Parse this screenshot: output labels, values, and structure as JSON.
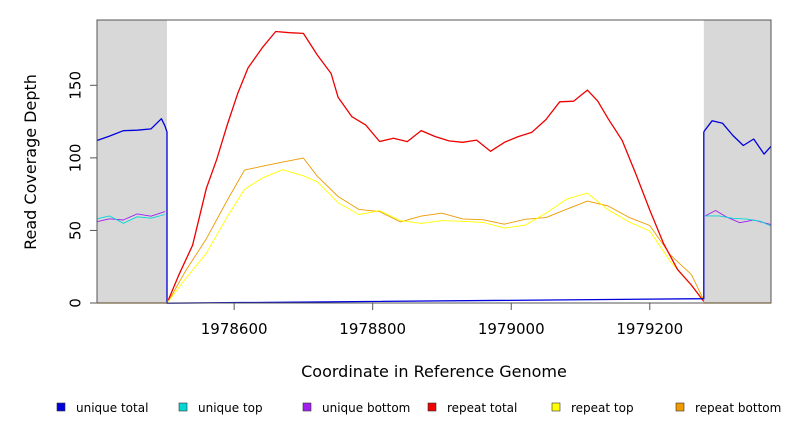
{
  "chart_data": {
    "type": "line",
    "title": "",
    "xlabel": "Coordinate in Reference Genome",
    "ylabel": "Read Coverage Depth",
    "xlim": [
      1978402,
      1979375
    ],
    "ylim": [
      0,
      195
    ],
    "x_ticks": [
      1978600,
      1978800,
      1979000,
      1979200
    ],
    "y_ticks": [
      0,
      50,
      100,
      150
    ],
    "shaded_regions": [
      {
        "from": 1978402,
        "to": 1978503,
        "color": "#d8d8d8"
      },
      {
        "from": 1979278,
        "to": 1979375,
        "color": "#d8d8d8"
      }
    ],
    "grid": false,
    "legend_position": "bottom",
    "series": [
      {
        "name": "unique total",
        "color": "#0000dd",
        "segments": [
          {
            "x": [
              1978402,
              1978420,
              1978440,
              1978460,
              1978480,
              1978495,
              1978500,
              1978503,
              1978503,
              1979278,
              1979278
            ],
            "y": [
              112,
              116,
              120,
              117,
              119,
              126,
              122,
              119,
              1,
              1,
              118
            ]
          },
          {
            "x": [
              1979278,
              1979290,
              1979305,
              1979320,
              1979335,
              1979350,
              1979365,
              1979375
            ],
            "y": [
              118,
              126,
              122,
              114,
              108,
              112,
              103,
              108
            ]
          }
        ]
      },
      {
        "name": "unique top",
        "color": "#00d8d8",
        "segments": [
          {
            "x": [
              1978402,
              1978420,
              1978440,
              1978460,
              1978480,
              1978500
            ],
            "y": [
              58,
              59,
              57,
              60,
              59,
              61
            ]
          },
          {
            "x": [
              1979280,
              1979300,
              1979320,
              1979340,
              1979360,
              1979375
            ],
            "y": [
              60,
              61,
              59,
              57,
              54,
              53
            ]
          }
        ]
      },
      {
        "name": "unique bottom",
        "color": "#a020f0",
        "segments": [
          {
            "x": [
              1978402,
              1978420,
              1978440,
              1978460,
              1978480,
              1978500
            ],
            "y": [
              56,
              58,
              57,
              59,
              60,
              63
            ]
          },
          {
            "x": [
              1979280,
              1979295,
              1979310,
              1979330,
              1979350,
              1979375
            ],
            "y": [
              60,
              64,
              60,
              56,
              55,
              54
            ]
          }
        ]
      },
      {
        "name": "repeat total",
        "color": "#ee0000",
        "segments": [
          {
            "x": [
              1978505,
              1978520,
              1978540,
              1978560,
              1978575,
              1978590,
              1978605,
              1978620,
              1978640,
              1978660,
              1978680,
              1978700,
              1978720,
              1978740,
              1978750,
              1978770,
              1978790,
              1978810,
              1978830,
              1978850,
              1978870,
              1978890,
              1978910,
              1978930,
              1978950,
              1978970,
              1978990,
              1979010,
              1979030,
              1979050,
              1979070,
              1979090,
              1979110,
              1979125,
              1979140,
              1979160,
              1979180,
              1979200,
              1979220,
              1979240,
              1979260,
              1979278
            ],
            "y": [
              2,
              20,
              42,
              78,
              100,
              125,
              145,
              162,
              178,
              187,
              186,
              184,
              170,
              160,
              140,
              127,
              124,
              112,
              115,
              110,
              117,
              115,
              112,
              113,
              112,
              103,
              110,
              114,
              120,
              127,
              138,
              138,
              145,
              138,
              126,
              110,
              90,
              65,
              42,
              23,
              10,
              1
            ]
          }
        ]
      },
      {
        "name": "repeat top",
        "color": "#ffff00",
        "segments": [
          {
            "x": [
              1978505,
              1978530,
              1978560,
              1978590,
              1978615,
              1978640,
              1978670,
              1978700,
              1978720,
              1978750,
              1978780,
              1978810,
              1978840,
              1978870,
              1978900,
              1978930,
              1978960,
              1978990,
              1979020,
              1979050,
              1979080,
              1979110,
              1979140,
              1979170,
              1979200,
              1979230,
              1979260,
              1979278
            ],
            "y": [
              1,
              18,
              35,
              60,
              78,
              86,
              90,
              88,
              82,
              70,
              63,
              62,
              56,
              55,
              58,
              57,
              53,
              52,
              55,
              62,
              71,
              74,
              66,
              57,
              48,
              28,
              12,
              2
            ]
          }
        ]
      },
      {
        "name": "repeat bottom",
        "color": "#ee9a00",
        "segments": [
          {
            "x": [
              1978505,
              1978530,
              1978560,
              1978590,
              1978615,
              1978640,
              1978670,
              1978700,
              1978720,
              1978750,
              1978780,
              1978810,
              1978840,
              1978870,
              1978900,
              1978930,
              1978960,
              1978990,
              1979020,
              1979050,
              1979080,
              1979110,
              1979140,
              1979170,
              1979200,
              1979230,
              1979260,
              1979278
            ],
            "y": [
              1,
              22,
              42,
              72,
              90,
              96,
              98,
              99,
              88,
              72,
              64,
              63,
              58,
              59,
              60,
              59,
              58,
              55,
              56,
              58,
              67,
              70,
              66,
              58,
              54,
              35,
              18,
              2
            ]
          }
        ]
      }
    ],
    "baselines": [
      {
        "name": "repeat bottom",
        "color": "#ee9a00",
        "x": [
          1978402,
          1978503
        ],
        "y": [
          0,
          0
        ]
      },
      {
        "name": "repeat bottom",
        "color": "#ee9a00",
        "x": [
          1979278,
          1979375
        ],
        "y": [
          0,
          0
        ]
      }
    ]
  }
}
